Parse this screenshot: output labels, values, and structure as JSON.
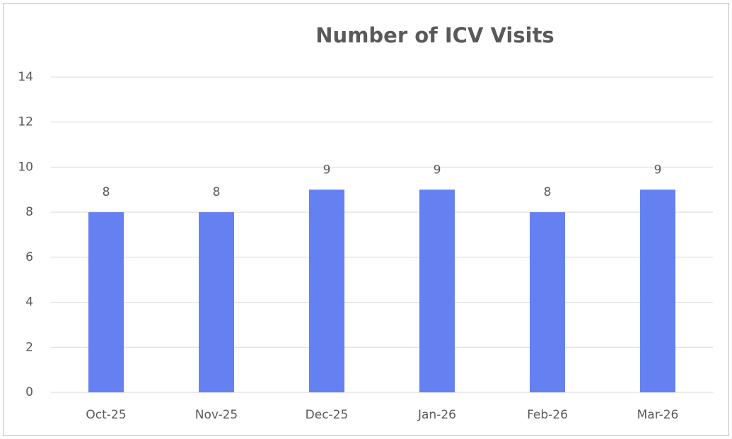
{
  "chart_data": {
    "type": "bar",
    "title": "Number of ICV Visits",
    "categories": [
      "Oct-25",
      "Nov-25",
      "Dec-25",
      "Jan-26",
      "Feb-26",
      "Mar-26"
    ],
    "values": [
      8,
      8,
      9,
      9,
      8,
      9
    ],
    "color": "#6580f0",
    "ylim": [
      0,
      14
    ],
    "yticks": [
      0,
      2,
      4,
      6,
      8,
      10,
      12,
      14
    ],
    "grid": true
  }
}
